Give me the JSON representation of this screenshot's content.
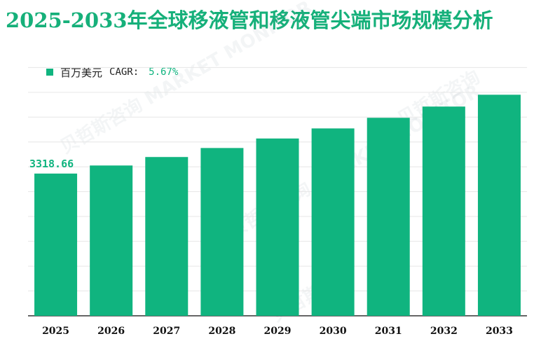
{
  "title": "2025-2033年全球移液管和移液管尖端市场规模分析",
  "legend": {
    "series_name": "百万美元",
    "cagr_label": "CAGR:",
    "cagr_value": "5.67%"
  },
  "watermark": "贝哲斯咨询",
  "watermark_sub": "MARKET MONITOR",
  "colors": {
    "bar": "#10b47f",
    "title": "#16b07a",
    "grid": "#e6e6e6"
  },
  "chart_data": {
    "type": "bar",
    "title": "2025-2033年全球移液管和移液管尖端市场规模分析",
    "categories": [
      "2025",
      "2026",
      "2027",
      "2028",
      "2029",
      "2030",
      "2031",
      "2032",
      "2033"
    ],
    "series": [
      {
        "name": "百万美元",
        "values": [
          3318.66,
          3507,
          3705,
          3915,
          4137,
          4372,
          4620,
          4882,
          5158
        ]
      }
    ],
    "data_labels": [
      {
        "index": 0,
        "text": "3318.66"
      }
    ],
    "ylim": [
      0,
      5800
    ],
    "grid": true,
    "legend_position": "top-left"
  }
}
